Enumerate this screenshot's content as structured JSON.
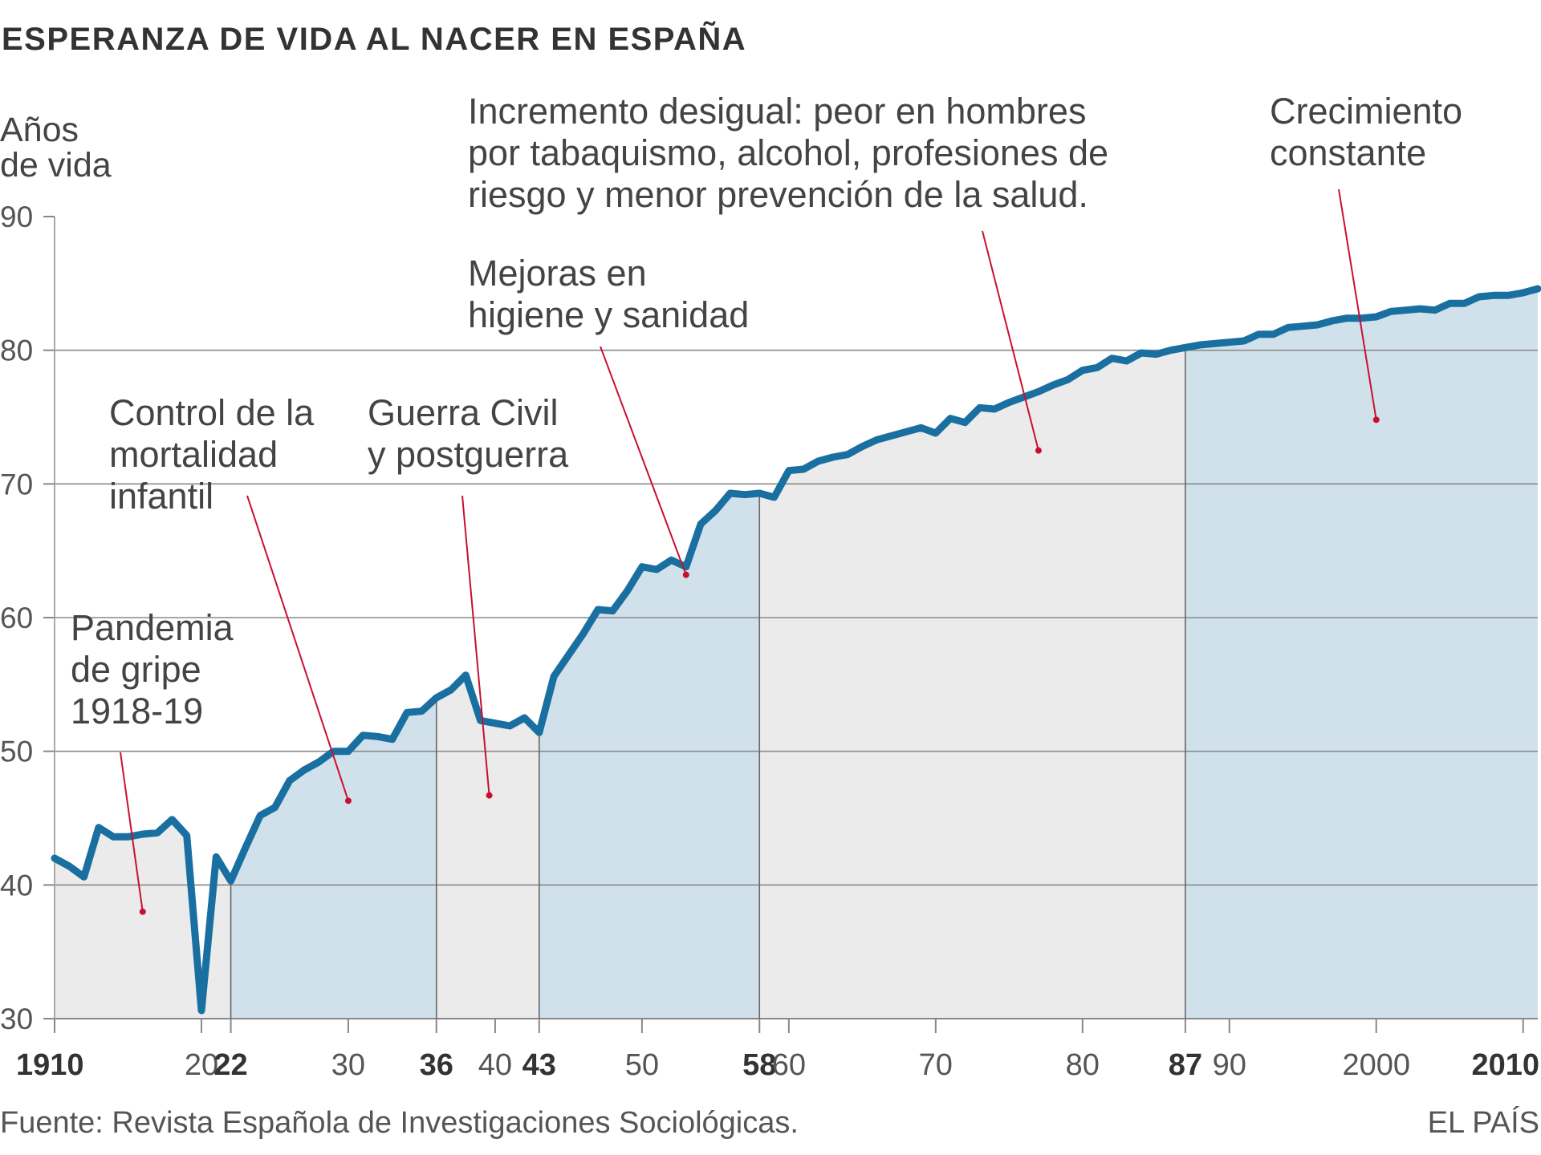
{
  "title": "ESPERANZA DE VIDA AL NACER EN ESPAÑA",
  "source": "Fuente: Revista Española de Investigaciones Sociológicas.",
  "brand": "EL PAÍS",
  "colors": {
    "line": "#1a6fa1",
    "period_blue": "#d0e1ec",
    "period_gray": "#ebebeb",
    "grid": "#8a8a8a",
    "annotation_pointer": "#c8102e"
  },
  "chart_data": {
    "type": "area",
    "ylabel": [
      "Años",
      "de vida"
    ],
    "ylim": [
      30,
      90
    ],
    "yticks": [
      30,
      40,
      50,
      60,
      70,
      80,
      90
    ],
    "xlim": [
      1910,
      2011
    ],
    "xticks": [
      {
        "value": 1910,
        "label": "1910",
        "bold": true
      },
      {
        "value": 1920,
        "label": "20",
        "bold": false
      },
      {
        "value": 1922,
        "label": "22",
        "bold": true
      },
      {
        "value": 1930,
        "label": "30",
        "bold": false
      },
      {
        "value": 1936,
        "label": "36",
        "bold": true
      },
      {
        "value": 1940,
        "label": "40",
        "bold": false
      },
      {
        "value": 1943,
        "label": "43",
        "bold": true
      },
      {
        "value": 1950,
        "label": "50",
        "bold": false
      },
      {
        "value": 1958,
        "label": "58",
        "bold": true
      },
      {
        "value": 1960,
        "label": "60",
        "bold": false
      },
      {
        "value": 1970,
        "label": "70",
        "bold": false
      },
      {
        "value": 1980,
        "label": "80",
        "bold": false
      },
      {
        "value": 1987,
        "label": "87",
        "bold": true
      },
      {
        "value": 1990,
        "label": "90",
        "bold": false
      },
      {
        "value": 2000,
        "label": "2000",
        "bold": false
      },
      {
        "value": 2010,
        "label": "2010",
        "bold": true
      }
    ],
    "periods": [
      {
        "start": 1910,
        "end": 1922,
        "shade": "gray"
      },
      {
        "start": 1922,
        "end": 1936,
        "shade": "blue"
      },
      {
        "start": 1936,
        "end": 1943,
        "shade": "gray"
      },
      {
        "start": 1943,
        "end": 1958,
        "shade": "blue"
      },
      {
        "start": 1958,
        "end": 1987,
        "shade": "gray"
      },
      {
        "start": 1987,
        "end": 2011,
        "shade": "blue"
      }
    ],
    "series": [
      {
        "x": [
          1910,
          1911,
          1912,
          1913,
          1914,
          1915,
          1916,
          1917,
          1918,
          1919,
          1920,
          1921,
          1922,
          1923,
          1924,
          1925,
          1926,
          1927,
          1928,
          1929,
          1930,
          1931,
          1932,
          1933,
          1934,
          1935,
          1936,
          1937,
          1938,
          1939,
          1940,
          1941,
          1942,
          1943,
          1944,
          1945,
          1946,
          1947,
          1948,
          1949,
          1950,
          1951,
          1952,
          1953,
          1954,
          1955,
          1956,
          1957,
          1958,
          1959,
          1960,
          1961,
          1962,
          1963,
          1964,
          1965,
          1966,
          1967,
          1968,
          1969,
          1970,
          1971,
          1972,
          1973,
          1974,
          1975,
          1976,
          1977,
          1978,
          1979,
          1980,
          1981,
          1982,
          1983,
          1984,
          1985,
          1986,
          1987,
          1988,
          1989,
          1990,
          1991,
          1992,
          1993,
          1994,
          1995,
          1996,
          1997,
          1998,
          1999,
          2000,
          2001,
          2002,
          2003,
          2004,
          2005,
          2006,
          2007,
          2008,
          2009,
          2010,
          2011
        ],
        "values": [
          42.0,
          41.4,
          40.6,
          44.3,
          43.6,
          43.6,
          43.8,
          43.9,
          44.9,
          43.7,
          30.6,
          42.1,
          40.3,
          42.8,
          45.2,
          45.8,
          47.8,
          48.6,
          49.2,
          50.0,
          50.0,
          51.2,
          51.1,
          50.9,
          52.9,
          53.0,
          54.0,
          54.6,
          55.7,
          52.3,
          52.1,
          51.9,
          52.5,
          51.4,
          55.6,
          57.2,
          58.8,
          60.6,
          60.5,
          62.0,
          63.8,
          63.6,
          64.3,
          63.8,
          67.0,
          68.0,
          69.3,
          69.2,
          69.3,
          69.0,
          71.0,
          71.1,
          71.7,
          72.0,
          72.2,
          72.8,
          73.3,
          73.6,
          73.9,
          74.2,
          73.8,
          74.9,
          74.6,
          75.7,
          75.6,
          76.1,
          76.5,
          76.9,
          77.4,
          77.8,
          78.5,
          78.7,
          79.4,
          79.2,
          79.8,
          79.7,
          80.0,
          80.2,
          80.4,
          80.5,
          80.6,
          80.7,
          81.2,
          81.2,
          81.7,
          81.8,
          81.9,
          82.2,
          82.4,
          82.4,
          82.5,
          82.9,
          83.0,
          83.1,
          83.0,
          83.5,
          83.5,
          84.0,
          84.1,
          84.1,
          84.3,
          84.6
        ]
      }
    ],
    "annotations": [
      {
        "lines": [
          "Pandemia",
          "de gripe",
          "1918-19"
        ],
        "target": [
          1916,
          38.0
        ]
      },
      {
        "lines": [
          "Control de la",
          "mortalidad",
          "infantil"
        ],
        "target": [
          1930,
          46.3
        ]
      },
      {
        "lines": [
          "Guerra Civil",
          "y postguerra"
        ],
        "target": [
          1939.6,
          46.7
        ]
      },
      {
        "lines": [
          "Mejoras en",
          "higiene y sanidad"
        ],
        "target": [
          1953,
          63.2
        ]
      },
      {
        "lines": [
          "Incremento desigual: peor en hombres",
          "por tabaquismo, alcohol, profesiones de",
          "riesgo y menor prevención de la salud."
        ],
        "target": [
          1977,
          72.5
        ]
      },
      {
        "lines": [
          "Crecimiento",
          "constante"
        ],
        "target": [
          2000,
          74.8
        ]
      }
    ],
    "grid": true
  }
}
